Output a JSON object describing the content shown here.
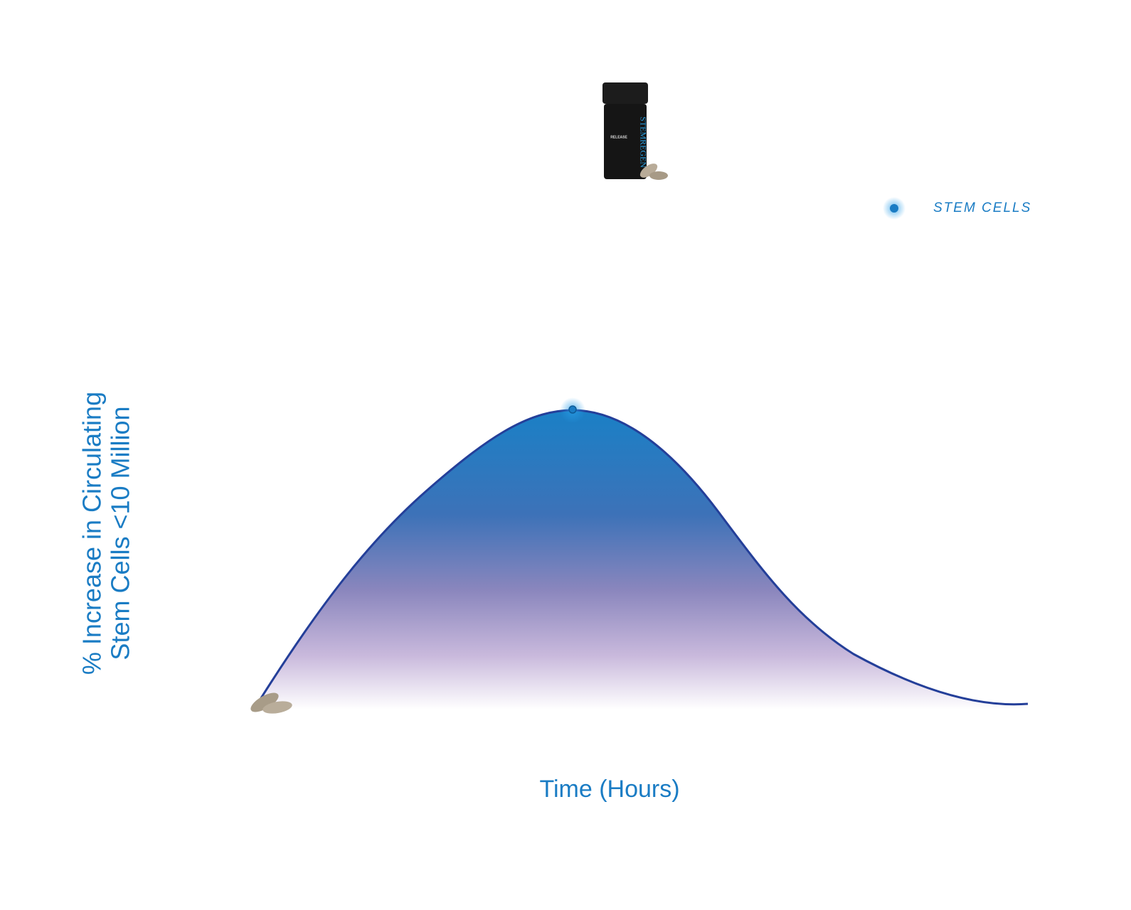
{
  "legend": {
    "label": "STEM CELLS"
  },
  "axes": {
    "y_title": [
      "% Increase in Circulating",
      "Stem Cells <10 Million"
    ],
    "x_title": "Time (Hours)"
  },
  "product": {
    "brand": "STEMREGEN",
    "name": "RELEASE"
  }
}
